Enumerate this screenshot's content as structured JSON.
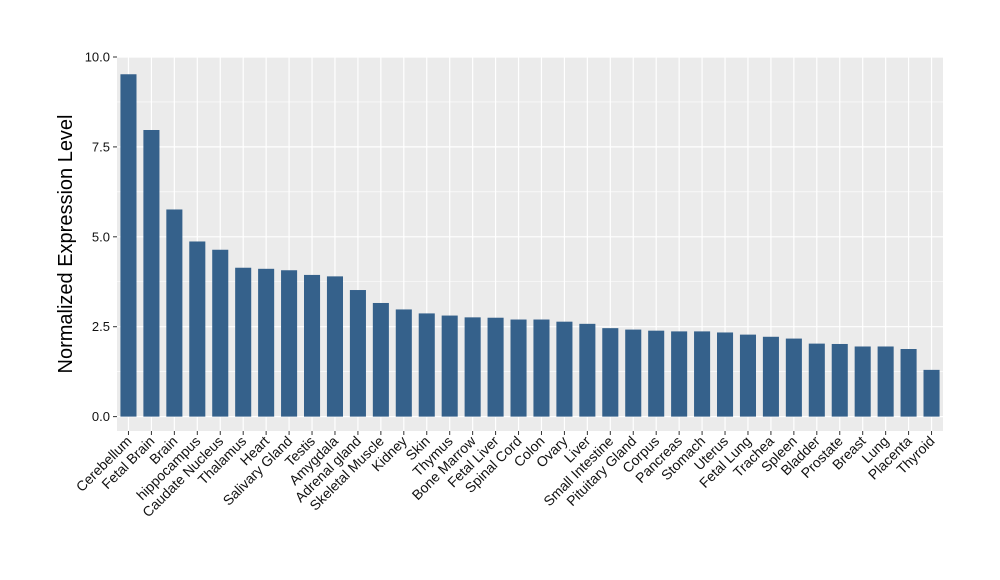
{
  "chart_data": {
    "type": "bar",
    "title": "",
    "xlabel": "",
    "ylabel": "Normalized Expression Level",
    "ylim": [
      -0.4,
      10.0
    ],
    "yticks": [
      0.0,
      2.5,
      5.0,
      7.5,
      10.0
    ],
    "ytick_labels": [
      "0.0",
      "2.5",
      "5.0",
      "7.5",
      "10.0"
    ],
    "grid": true,
    "bar_color": "#35618b",
    "panel_background": "#ebebeb",
    "grid_color": "#ffffff",
    "categories": [
      "Cerebellum",
      "Fetal Brain",
      "Brain",
      "hippocampus",
      "Caudate Nucleus",
      "Thalamus",
      "Heart",
      "Salivary Gland",
      "Testis",
      "Amygdala",
      "Adrenal gland",
      "Skeletal Muscle",
      "Kidney",
      "Skin",
      "Thymus",
      "Bone Marrow",
      "Fetal Liver",
      "Spinal Cord",
      "Colon",
      "Ovary",
      "Liver",
      "Small Intestine",
      "Pituitary Gland",
      "Corpus",
      "Pancreas",
      "Stomach",
      "Uterus",
      "Fetal Lung",
      "Trachea",
      "Spleen",
      "Bladder",
      "Prostate",
      "Breast",
      "Lung",
      "Placenta",
      "Thyroid"
    ],
    "values": [
      9.52,
      7.97,
      5.76,
      4.87,
      4.64,
      4.14,
      4.11,
      4.07,
      3.94,
      3.9,
      3.52,
      3.16,
      2.98,
      2.87,
      2.81,
      2.76,
      2.75,
      2.7,
      2.7,
      2.64,
      2.58,
      2.46,
      2.42,
      2.39,
      2.37,
      2.37,
      2.34,
      2.28,
      2.22,
      2.17,
      2.03,
      2.02,
      1.95,
      1.95,
      1.88,
      1.3
    ]
  }
}
